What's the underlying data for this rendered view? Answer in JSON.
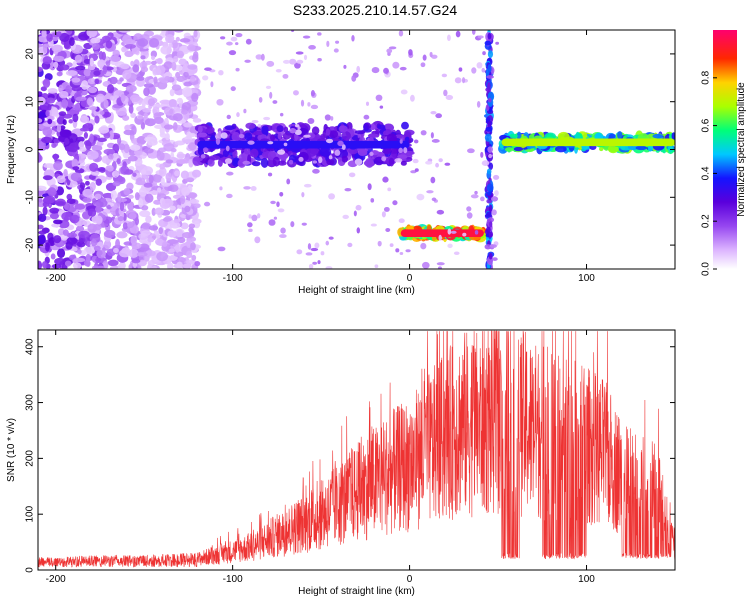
{
  "title": "S233.2025.210.14.57.G24",
  "chart_data": [
    {
      "type": "heatmap",
      "xlabel": "Height of straight line (km)",
      "ylabel": "Frequency (Hz)",
      "xlim": [
        -210,
        150
      ],
      "ylim": [
        -25,
        25
      ],
      "x_ticks": [
        -200,
        -100,
        0,
        100
      ],
      "y_ticks": [
        20,
        10,
        0,
        -10,
        -20
      ],
      "colorbar": {
        "label": "Normalized spectral amplitude",
        "range": [
          0,
          1
        ],
        "ticks": [
          0.0,
          0.2,
          0.4,
          0.6,
          0.8
        ],
        "colors": [
          "#ffffff",
          "#cc66ff",
          "#6600cc",
          "#0000ff",
          "#00ccff",
          "#00ff66",
          "#ccff00",
          "#ffcc00",
          "#ff0000",
          "#ff0066"
        ]
      },
      "features": [
        {
          "kind": "noise",
          "x_range": [
            -210,
            -120
          ],
          "y_range": [
            -25,
            25
          ],
          "amplitude": 0.2
        },
        {
          "kind": "band",
          "x_range": [
            -120,
            0
          ],
          "center_hz": 1,
          "amplitude": 0.35
        },
        {
          "kind": "band",
          "x_range": [
            -5,
            42
          ],
          "center_hz": -17.5,
          "amplitude": 0.95
        },
        {
          "kind": "vertical",
          "x": 45,
          "y_range": [
            -25,
            25
          ],
          "amplitude": 0.4
        },
        {
          "kind": "band",
          "x_range": [
            52,
            150
          ],
          "center_hz": 1.5,
          "amplitude": 0.7
        }
      ]
    },
    {
      "type": "line",
      "xlabel": "Height of straight line (km)",
      "ylabel": "SNR (10 * v/v)",
      "xlim": [
        -210,
        150
      ],
      "ylim": [
        0,
        430
      ],
      "x_ticks": [
        -200,
        -100,
        0,
        100
      ],
      "y_ticks": [
        0,
        100,
        200,
        300,
        400
      ],
      "series": [
        {
          "color": "#ee3333",
          "envelope_points": [
            [
              -210,
              18
            ],
            [
              -190,
              20
            ],
            [
              -170,
              22
            ],
            [
              -150,
              22
            ],
            [
              -130,
              25
            ],
            [
              -120,
              28
            ],
            [
              -110,
              38
            ],
            [
              -100,
              48
            ],
            [
              -90,
              58
            ],
            [
              -80,
              78
            ],
            [
              -70,
              98
            ],
            [
              -60,
              118
            ],
            [
              -50,
              140
            ],
            [
              -40,
              168
            ],
            [
              -30,
              198
            ],
            [
              -20,
              225
            ],
            [
              -10,
              250
            ],
            [
              0,
              270
            ],
            [
              10,
              305
            ],
            [
              20,
              340
            ],
            [
              30,
              375
            ],
            [
              40,
              375
            ],
            [
              50,
              390
            ],
            [
              60,
              390
            ],
            [
              70,
              360
            ],
            [
              80,
              345
            ],
            [
              90,
              335
            ],
            [
              100,
              320
            ],
            [
              110,
              300
            ],
            [
              120,
              240
            ],
            [
              130,
              212
            ],
            [
              140,
              205
            ],
            [
              145,
              130
            ],
            [
              150,
              60
            ]
          ],
          "dropouts_to": 20,
          "dropout_ranges": [
            [
              52,
              62
            ],
            [
              75,
              100
            ],
            [
              120,
              148
            ]
          ]
        }
      ]
    }
  ]
}
